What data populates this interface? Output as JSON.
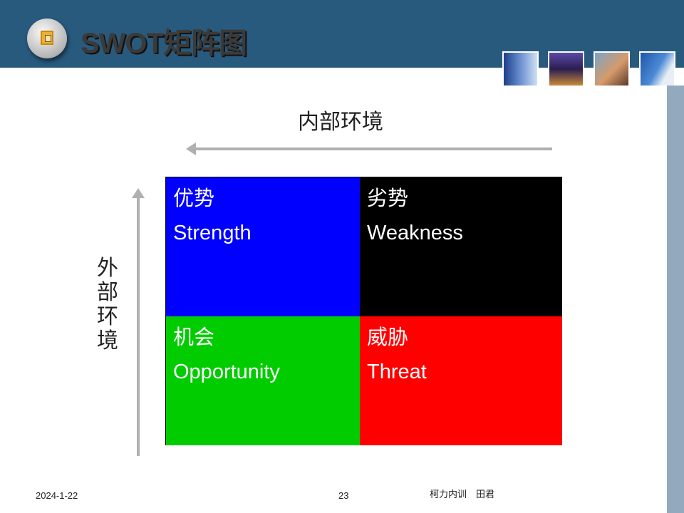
{
  "header": {
    "title": "SWOT矩阵图",
    "thumbnails": [
      "building-photo",
      "city-night-photo",
      "phone-person-photo",
      "skyscraper-photo"
    ]
  },
  "axes": {
    "top": "内部环境",
    "left": "外部环境"
  },
  "matrix": [
    {
      "zh": "优势",
      "en": "Strength",
      "color": "#0000ff"
    },
    {
      "zh": "劣势",
      "en": "Weakness",
      "color": "#000000"
    },
    {
      "zh": "机会",
      "en": "Opportunity",
      "color": "#00cc00"
    },
    {
      "zh": "威胁",
      "en": "Threat",
      "color": "#ff0000"
    }
  ],
  "footer": {
    "date": "2024-1-22",
    "page": "23",
    "author": "柯力内训　田君"
  }
}
